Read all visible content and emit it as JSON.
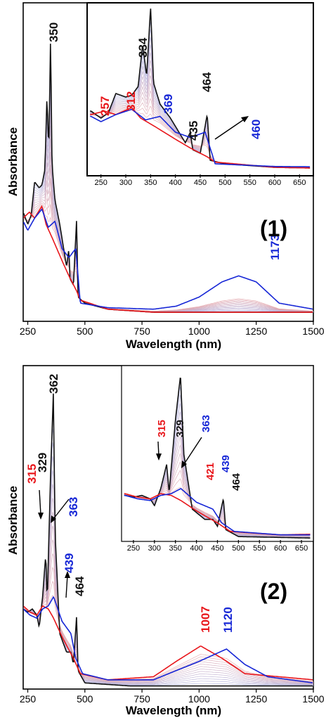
{
  "colors": {
    "red": "#e8161b",
    "blue": "#1626d6",
    "black": "#111111",
    "red_fill": "#e8a3a5",
    "blue_fill": "#a7b1e4"
  },
  "chart_data": [
    {
      "type": "line",
      "panel_label": "(1)",
      "xlabel": "Wavelength (nm)",
      "ylabel": "Absorbance",
      "xlim": [
        230,
        1500
      ],
      "ylim": [
        0,
        1.05
      ],
      "xticks": [
        250,
        500,
        750,
        1000,
        1250,
        1500
      ],
      "series": [
        {
          "color": "black",
          "points": [
            [
              230,
              0.36
            ],
            [
              250,
              0.32
            ],
            [
              265,
              0.35
            ],
            [
              280,
              0.46
            ],
            [
              300,
              0.44
            ],
            [
              312,
              0.45
            ],
            [
              325,
              0.5
            ],
            [
              334,
              0.74
            ],
            [
              342,
              0.56
            ],
            [
              350,
              0.95
            ],
            [
              356,
              0.52
            ],
            [
              369,
              0.4
            ],
            [
              390,
              0.32
            ],
            [
              420,
              0.18
            ],
            [
              430,
              0.24
            ],
            [
              435,
              0.14
            ],
            [
              450,
              0.12
            ],
            [
              464,
              0.34
            ],
            [
              470,
              0.08
            ],
            [
              500,
              0.06
            ],
            [
              600,
              0.04
            ],
            [
              800,
              0.03
            ],
            [
              1000,
              0.03
            ],
            [
              1500,
              0.03
            ]
          ]
        },
        {
          "color": "red",
          "points": [
            [
              230,
              0.34
            ],
            [
              257,
              0.36
            ],
            [
              280,
              0.34
            ],
            [
              312,
              0.38
            ],
            [
              330,
              0.32
            ],
            [
              360,
              0.27
            ],
            [
              400,
              0.2
            ],
            [
              430,
              0.15
            ],
            [
              464,
              0.1
            ],
            [
              480,
              0.07
            ],
            [
              600,
              0.04
            ],
            [
              800,
              0.03
            ],
            [
              1500,
              0.03
            ]
          ]
        },
        {
          "color": "blue",
          "points": [
            [
              230,
              0.33
            ],
            [
              250,
              0.3
            ],
            [
              280,
              0.34
            ],
            [
              312,
              0.37
            ],
            [
              340,
              0.31
            ],
            [
              369,
              0.33
            ],
            [
              400,
              0.24
            ],
            [
              430,
              0.21
            ],
            [
              460,
              0.24
            ],
            [
              480,
              0.06
            ],
            [
              600,
              0.045
            ],
            [
              800,
              0.04
            ],
            [
              900,
              0.05
            ],
            [
              1000,
              0.08
            ],
            [
              1100,
              0.13
            ],
            [
              1173,
              0.15
            ],
            [
              1250,
              0.13
            ],
            [
              1350,
              0.06
            ],
            [
              1500,
              0.04
            ]
          ]
        }
      ],
      "annotations": [
        {
          "text": "350",
          "color": "black",
          "x": 350
        },
        {
          "text": "1173",
          "color": "blue",
          "x": 1173
        }
      ],
      "inset": {
        "xlim": [
          225,
          675
        ],
        "xticks": [
          250,
          300,
          350,
          400,
          450,
          500,
          550,
          600,
          650
        ],
        "annotations": [
          {
            "text": "257",
            "color": "red"
          },
          {
            "text": "312",
            "color": "red"
          },
          {
            "text": "334",
            "color": "black"
          },
          {
            "text": "369",
            "color": "blue"
          },
          {
            "text": "435",
            "color": "black"
          },
          {
            "text": "464",
            "color": "black"
          },
          {
            "text": "460",
            "color": "blue"
          }
        ]
      }
    },
    {
      "type": "line",
      "panel_label": "(2)",
      "xlabel": "Wavelength (nm)",
      "ylabel": "Absorbance",
      "xlim": [
        230,
        1500
      ],
      "ylim": [
        0,
        1.05
      ],
      "xticks": [
        250,
        500,
        750,
        1000,
        1250,
        1500
      ],
      "series": [
        {
          "color": "black",
          "points": [
            [
              230,
              0.26
            ],
            [
              250,
              0.25
            ],
            [
              270,
              0.26
            ],
            [
              290,
              0.24
            ],
            [
              300,
              0.2
            ],
            [
              315,
              0.3
            ],
            [
              329,
              0.44
            ],
            [
              335,
              0.28
            ],
            [
              350,
              0.7
            ],
            [
              362,
              0.96
            ],
            [
              370,
              0.5
            ],
            [
              390,
              0.18
            ],
            [
              420,
              0.12
            ],
            [
              439,
              0.12
            ],
            [
              450,
              0.08
            ],
            [
              464,
              0.24
            ],
            [
              470,
              0.06
            ],
            [
              500,
              0.02
            ],
            [
              700,
              0.01
            ],
            [
              800,
              0.01
            ],
            [
              1000,
              0.01
            ],
            [
              1500,
              0.01
            ]
          ]
        },
        {
          "color": "red",
          "points": [
            [
              230,
              0.27
            ],
            [
              260,
              0.25
            ],
            [
              290,
              0.24
            ],
            [
              315,
              0.27
            ],
            [
              340,
              0.26
            ],
            [
              363,
              0.23
            ],
            [
              400,
              0.17
            ],
            [
              421,
              0.14
            ],
            [
              450,
              0.1
            ],
            [
              480,
              0.05
            ],
            [
              600,
              0.03
            ],
            [
              800,
              0.04
            ],
            [
              900,
              0.09
            ],
            [
              1007,
              0.14
            ],
            [
              1100,
              0.1
            ],
            [
              1200,
              0.05
            ],
            [
              1500,
              0.03
            ]
          ]
        },
        {
          "color": "blue",
          "points": [
            [
              230,
              0.26
            ],
            [
              260,
              0.24
            ],
            [
              290,
              0.23
            ],
            [
              315,
              0.26
            ],
            [
              340,
              0.27
            ],
            [
              363,
              0.3
            ],
            [
              400,
              0.22
            ],
            [
              439,
              0.18
            ],
            [
              460,
              0.1
            ],
            [
              490,
              0.05
            ],
            [
              600,
              0.03
            ],
            [
              800,
              0.03
            ],
            [
              900,
              0.06
            ],
            [
              1000,
              0.09
            ],
            [
              1120,
              0.13
            ],
            [
              1200,
              0.08
            ],
            [
              1300,
              0.04
            ],
            [
              1500,
              0.02
            ]
          ]
        }
      ],
      "annotations": [
        {
          "text": "362",
          "color": "black",
          "x": 362
        },
        {
          "text": "329",
          "color": "black",
          "x": 329
        },
        {
          "text": "315",
          "color": "red",
          "x": 315
        },
        {
          "text": "363",
          "color": "blue",
          "x": 363
        },
        {
          "text": "439",
          "color": "blue",
          "x": 439
        },
        {
          "text": "464",
          "color": "black",
          "x": 464
        },
        {
          "text": "1007",
          "color": "red",
          "x": 1007
        },
        {
          "text": "1120",
          "color": "blue",
          "x": 1120
        }
      ],
      "inset": {
        "xlim": [
          225,
          675
        ],
        "xticks": [
          250,
          300,
          350,
          400,
          450,
          500,
          550,
          600,
          650
        ],
        "annotations": [
          {
            "text": "315",
            "color": "red"
          },
          {
            "text": "329",
            "color": "black"
          },
          {
            "text": "363",
            "color": "blue"
          },
          {
            "text": "421",
            "color": "red"
          },
          {
            "text": "439",
            "color": "blue"
          },
          {
            "text": "464",
            "color": "black"
          }
        ]
      }
    }
  ]
}
